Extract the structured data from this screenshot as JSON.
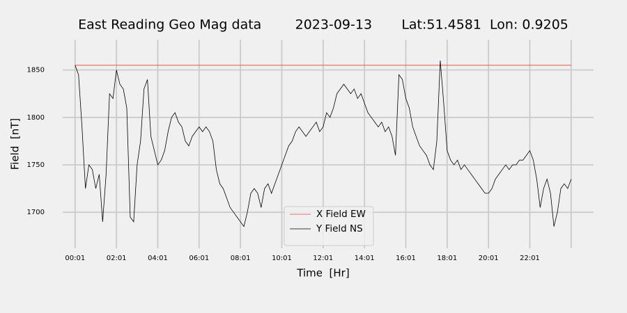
{
  "chart_data": {
    "type": "line",
    "title": "East Reading Geo Mag data        2023-09-13       Lat:51.4581  Lon: 0.9205",
    "xlabel": "Time  [Hr]",
    "ylabel": "Field  [nT]",
    "xlim": [
      -35,
      1506
    ],
    "ylim": [
      1662,
      1882
    ],
    "xticks": [
      {
        "value": 1,
        "label": "00:01"
      },
      {
        "value": 121,
        "label": "02:01"
      },
      {
        "value": 241,
        "label": "04:01"
      },
      {
        "value": 361,
        "label": "06:01"
      },
      {
        "value": 481,
        "label": "08:01"
      },
      {
        "value": 601,
        "label": "10:01"
      },
      {
        "value": 721,
        "label": "12:01"
      },
      {
        "value": 841,
        "label": "14:01"
      },
      {
        "value": 961,
        "label": "16:01"
      },
      {
        "value": 1081,
        "label": "18:01"
      },
      {
        "value": 1201,
        "label": "20:01"
      },
      {
        "value": 1321,
        "label": "22:01"
      },
      {
        "value": 1441,
        "label": null
      }
    ],
    "yticks": [
      1700,
      1750,
      1800,
      1850
    ],
    "grid": true,
    "legend": "lower center",
    "series": [
      {
        "name": "X Field EW",
        "color": "#e8413a",
        "x": [
          1,
          1441
        ],
        "values": [
          1855,
          1855
        ]
      },
      {
        "name": "Y Field NS",
        "color": "#000000",
        "x": [
          1,
          11,
          21,
          31,
          41,
          51,
          61,
          71,
          81,
          91,
          101,
          111,
          121,
          131,
          141,
          151,
          161,
          171,
          181,
          191,
          201,
          211,
          221,
          231,
          241,
          251,
          261,
          271,
          281,
          291,
          301,
          311,
          321,
          331,
          341,
          351,
          361,
          371,
          381,
          391,
          401,
          411,
          421,
          431,
          441,
          451,
          461,
          471,
          481,
          491,
          501,
          511,
          521,
          531,
          541,
          551,
          561,
          571,
          581,
          591,
          601,
          611,
          621,
          631,
          641,
          651,
          661,
          671,
          681,
          691,
          701,
          711,
          721,
          731,
          741,
          751,
          761,
          771,
          781,
          791,
          801,
          811,
          821,
          831,
          841,
          851,
          861,
          871,
          881,
          891,
          901,
          911,
          921,
          931,
          941,
          951,
          961,
          971,
          981,
          991,
          1001,
          1011,
          1021,
          1031,
          1041,
          1051,
          1061,
          1071,
          1081,
          1091,
          1101,
          1111,
          1121,
          1131,
          1141,
          1151,
          1161,
          1171,
          1181,
          1191,
          1201,
          1211,
          1221,
          1231,
          1241,
          1251,
          1261,
          1271,
          1281,
          1291,
          1301,
          1311,
          1321,
          1331,
          1341,
          1351,
          1361,
          1371,
          1381,
          1391,
          1401,
          1411,
          1421,
          1431,
          1441
        ],
        "values": [
          1855,
          1845,
          1790,
          1725,
          1750,
          1745,
          1725,
          1740,
          1690,
          1740,
          1825,
          1820,
          1850,
          1835,
          1830,
          1810,
          1695,
          1690,
          1750,
          1775,
          1830,
          1840,
          1780,
          1765,
          1750,
          1755,
          1765,
          1785,
          1800,
          1805,
          1795,
          1790,
          1775,
          1770,
          1780,
          1785,
          1790,
          1785,
          1790,
          1785,
          1775,
          1745,
          1730,
          1725,
          1715,
          1705,
          1700,
          1695,
          1690,
          1685,
          1700,
          1720,
          1725,
          1720,
          1705,
          1725,
          1730,
          1720,
          1730,
          1740,
          1750,
          1760,
          1770,
          1775,
          1785,
          1790,
          1785,
          1780,
          1785,
          1790,
          1795,
          1785,
          1790,
          1805,
          1800,
          1810,
          1825,
          1830,
          1835,
          1830,
          1825,
          1830,
          1820,
          1825,
          1815,
          1805,
          1800,
          1795,
          1790,
          1795,
          1785,
          1790,
          1780,
          1760,
          1845,
          1840,
          1820,
          1810,
          1790,
          1780,
          1770,
          1765,
          1760,
          1750,
          1745,
          1775,
          1860,
          1815,
          1765,
          1755,
          1750,
          1755,
          1745,
          1750,
          1745,
          1740,
          1735,
          1730,
          1725,
          1720,
          1720,
          1725,
          1735,
          1740,
          1745,
          1750,
          1745,
          1750,
          1750,
          1755,
          1755,
          1760,
          1765,
          1755,
          1735,
          1705,
          1725,
          1735,
          1720,
          1685,
          1700,
          1725,
          1730,
          1725,
          1735
        ]
      }
    ]
  }
}
